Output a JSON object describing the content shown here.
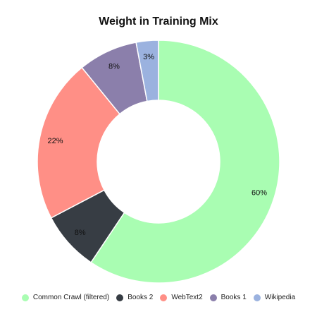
{
  "chart_data": {
    "type": "pie",
    "title": "Weight in Training Mix",
    "donut": true,
    "legend_position": "bottom",
    "start_angle": "top",
    "slices": [
      {
        "name": "Common Crawl (filtered)",
        "value": 60,
        "label": "60%",
        "color": "#a9fdb2"
      },
      {
        "name": "Books 2",
        "value": 8,
        "label": "8%",
        "color": "#373d44"
      },
      {
        "name": "WebText2",
        "value": 22,
        "label": "22%",
        "color": "#ff8f86"
      },
      {
        "name": "Books 1",
        "value": 8,
        "label": "8%",
        "color": "#8b7fab"
      },
      {
        "name": "Wikipedia",
        "value": 3,
        "label": "3%",
        "color": "#9bb2df"
      }
    ]
  }
}
